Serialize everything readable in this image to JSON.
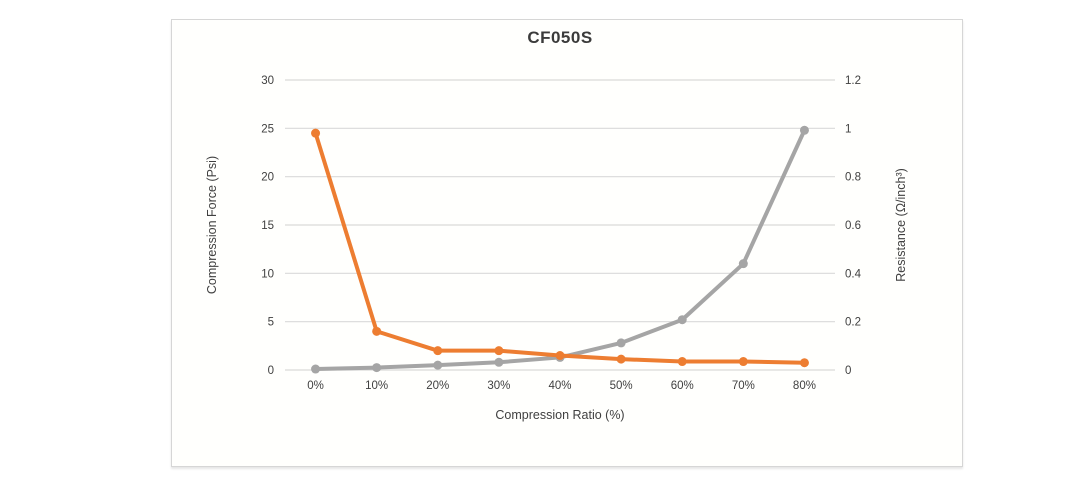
{
  "colors": {
    "force_series": "#a5a5a5",
    "resistance_series": "#ed7d31",
    "gridline": "#d9d9d9",
    "text": "#404040"
  },
  "chart_data": {
    "type": "line",
    "title": "CF050S",
    "xlabel": "Compression Ratio  (%)",
    "categories": [
      "0%",
      "10%",
      "20%",
      "30%",
      "40%",
      "50%",
      "60%",
      "70%",
      "80%"
    ],
    "grid": "horizontal",
    "legend": "none",
    "left_axis": {
      "label": "Compression Force  (Psi)",
      "min": 0,
      "max": 30,
      "step": 5,
      "ticks": [
        "0",
        "5",
        "10",
        "15",
        "20",
        "25",
        "30"
      ]
    },
    "right_axis": {
      "label": "Resistance (Ω/inch³)",
      "min": 0,
      "max": 1.2,
      "step": 0.2,
      "ticks": [
        "0",
        "0.2",
        "0.4",
        "0.6",
        "0.8",
        "1",
        "1.2"
      ]
    },
    "series": [
      {
        "name": "Compression Force",
        "axis": "left",
        "color": "#a5a5a5",
        "values": [
          0.1,
          0.25,
          0.5,
          0.8,
          1.3,
          2.8,
          5.2,
          11,
          24.8
        ]
      },
      {
        "name": "Resistance",
        "axis": "right",
        "color": "#ed7d31",
        "values": [
          0.98,
          0.16,
          0.08,
          0.08,
          0.06,
          0.045,
          0.035,
          0.035,
          0.03
        ]
      }
    ]
  }
}
